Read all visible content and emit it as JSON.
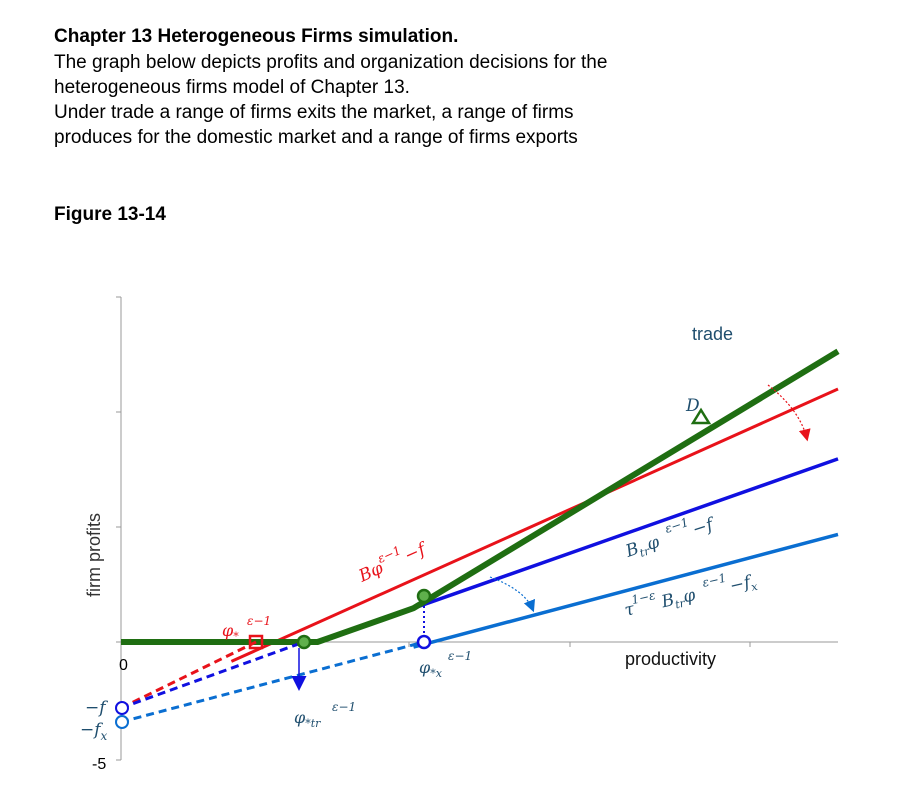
{
  "header": {
    "title": "Chapter 13 Heterogeneous Firms simulation.",
    "lines": [
      "The graph below depicts profits and organization decisions for the",
      "heterogeneous firms model of Chapter 13.",
      "Under trade a range of firms exits the market, a range of firms",
      "produces for the domestic market and a range of firms exports"
    ]
  },
  "figure_label": "Figure 13-14",
  "chart_data": {
    "type": "line",
    "ylabel": "firm profits",
    "xlabel": "productivity",
    "tick_labels": {
      "zero": "0",
      "min": "-5"
    },
    "annotation_trade": "trade",
    "point_D": "D",
    "labels": {
      "neg_f": "−f",
      "neg_fx": "−f",
      "fx_sub": "x",
      "phi": "φ",
      "phi_star_sub": "*",
      "phi_star_sup": "ε−1",
      "phi_tr_sub": "*tr",
      "phi_tr_sup": "ε−1",
      "phi_x_sub": "*x",
      "phi_x_sup": "ε−1",
      "red_line_main": "Bφ",
      "red_line_sup": "ε−1",
      "red_line_tail": "−f",
      "blue_line_B": "B",
      "blue_line_sub": "tr",
      "blue_line_phi": "φ",
      "blue_line_sup": "ε−1",
      "blue_line_tail": "−f",
      "lb_tau": "τ",
      "lb_tau_sup": "1−ε",
      "lb_B": "B",
      "lb_sub": "tr",
      "lb_phi": "φ",
      "lb_sup": "ε−1",
      "lb_tail": "−f",
      "lb_tail_sub": "x"
    },
    "xlim": [
      0,
      10
    ],
    "ylim": [
      -5,
      15
    ],
    "series": [
      {
        "key": "autarky",
        "color": "#e8121a",
        "points": [
          [
            0,
            -3
          ],
          [
            10,
            11
          ]
        ]
      },
      {
        "key": "domestic_trade",
        "color": "#1010e0",
        "points": [
          [
            0,
            -3
          ],
          [
            10,
            7.96
          ]
        ]
      },
      {
        "key": "export",
        "color": "#0a6ed1",
        "points": [
          [
            0,
            -3.6
          ],
          [
            10,
            4.68
          ]
        ]
      },
      {
        "key": "trade_total",
        "color": "#1f6e12",
        "points": [
          [
            0,
            0
          ],
          [
            1.54,
            0
          ],
          [
            2.74,
            0
          ],
          [
            4.08,
            1.47
          ],
          [
            10,
            12.64
          ]
        ]
      }
    ],
    "markers": {
      "phi_star": [
        1.15,
        0
      ],
      "phi_tr": [
        2.74,
        0
      ],
      "phi_x": [
        4.08,
        0
      ],
      "export_kink": [
        4.08,
        1.47
      ],
      "D": [
        7.65,
        8.2
      ],
      "neg_f": [
        0,
        -3
      ],
      "neg_fx": [
        0,
        -3.6
      ]
    },
    "colors": {
      "autarky": "#e8121a",
      "domestic": "#1010e0",
      "export": "#0a6ed1",
      "trade": "#1f6e12",
      "light_green": "#5fb04c",
      "axis": "#888888"
    }
  }
}
